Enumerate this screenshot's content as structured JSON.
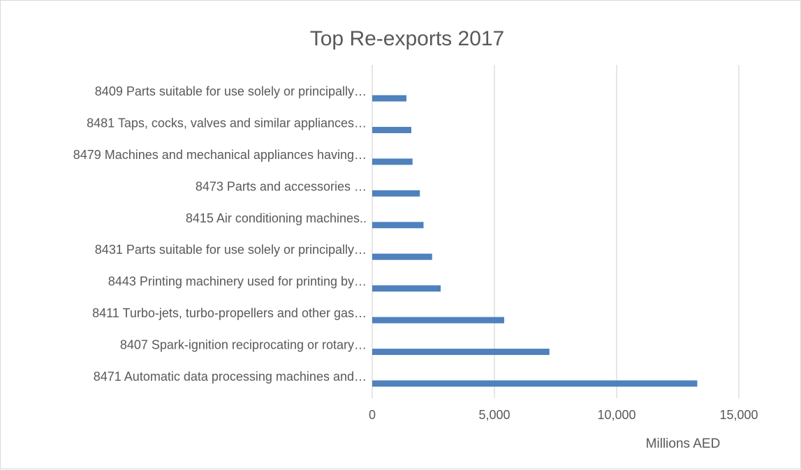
{
  "chart_data": {
    "type": "bar",
    "orientation": "horizontal",
    "title": "Top Re-exports 2017",
    "xlabel": "Millions AED",
    "ylabel": "",
    "xlim": [
      0,
      15000
    ],
    "xticks": [
      0,
      5000,
      10000,
      15000
    ],
    "xtick_labels": [
      "0",
      "5,000",
      "10,000",
      "15,000"
    ],
    "grid": true,
    "legend": "none",
    "categories": [
      "8409 Parts suitable for use solely or principally…",
      "8481 Taps, cocks, valves and similar appliances…",
      "8479 Machines and mechanical appliances having…",
      "8473 Parts and accessories …",
      "8415 Air conditioning machines..",
      "8431 Parts suitable for use solely or principally…",
      "8443 Printing machinery used for printing by…",
      "8411 Turbo-jets, turbo-propellers and other gas…",
      "8407 Spark-ignition reciprocating or rotary…",
      "8471 Automatic data processing machines and…"
    ],
    "values": [
      1400,
      1600,
      1650,
      1950,
      2100,
      2450,
      2800,
      5400,
      7250,
      13300
    ],
    "colors": {
      "bar": "#4f81bd",
      "grid": "#d9d9d9",
      "text": "#595959"
    }
  }
}
